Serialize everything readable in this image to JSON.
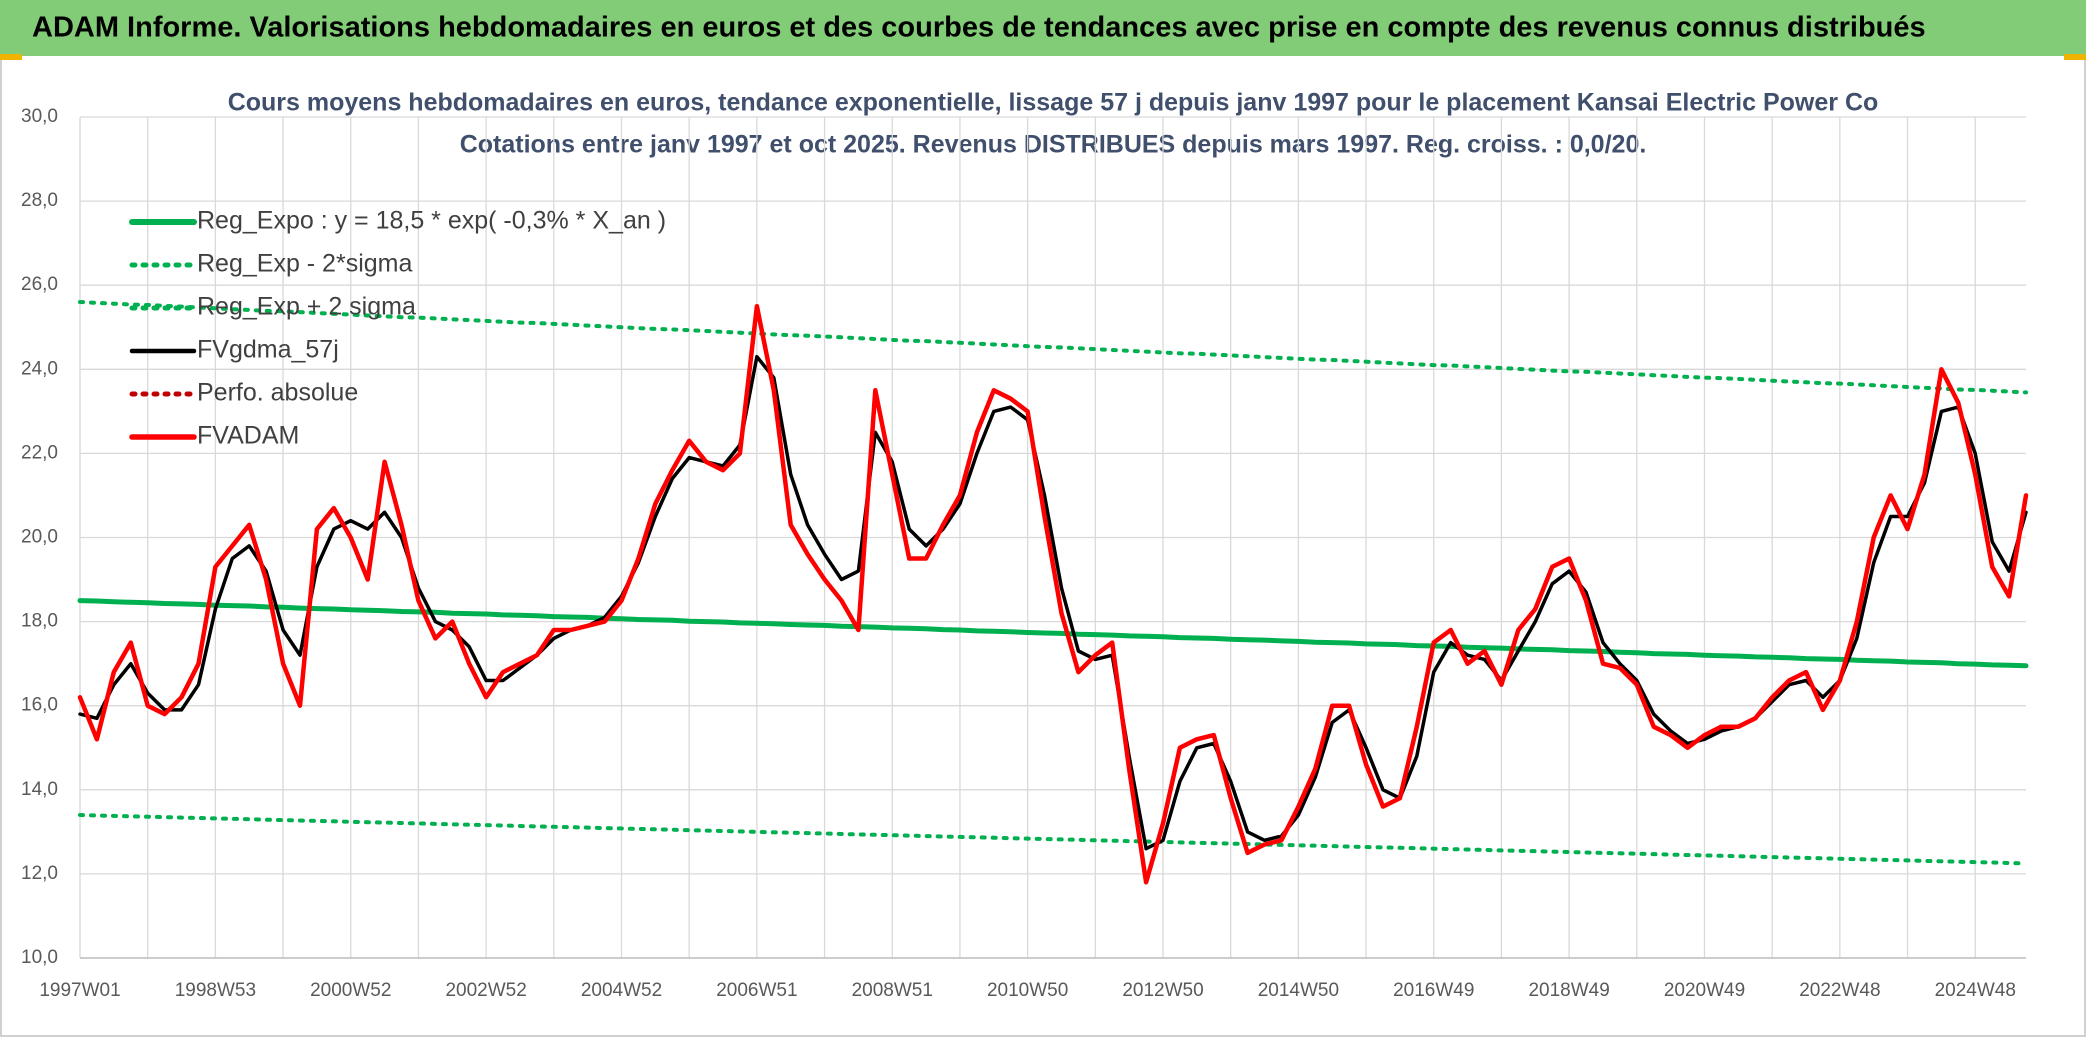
{
  "header": {
    "title": "ADAM Informe. Valorisations hebdomadaires en euros et des courbes de tendances avec prise en compte des revenus connus distribués"
  },
  "chart_data": {
    "type": "line",
    "title": "Cours moyens hebdomadaires en euros, tendance exponentielle, lissage 57 j depuis janv 1997 pour le placement Kansai Electric Power Co",
    "subtitle": "Cotations entre janv 1997 et oct 2025. Revenus DISTRIBUES depuis mars 1997. Reg. croiss. : 0,0/20.",
    "categories": [
      "1997W01",
      null,
      null,
      null,
      null,
      null,
      null,
      null,
      "1998W53",
      null,
      null,
      null,
      null,
      null,
      null,
      null,
      "2000W52",
      null,
      null,
      null,
      null,
      null,
      null,
      null,
      "2002W52",
      null,
      null,
      null,
      null,
      null,
      null,
      null,
      "2004W52",
      null,
      null,
      null,
      null,
      null,
      null,
      null,
      "2006W51",
      null,
      null,
      null,
      null,
      null,
      null,
      null,
      "2008W51",
      null,
      null,
      null,
      null,
      null,
      null,
      null,
      "2010W50",
      null,
      null,
      null,
      null,
      null,
      null,
      null,
      "2012W50",
      null,
      null,
      null,
      null,
      null,
      null,
      null,
      "2014W50",
      null,
      null,
      null,
      null,
      null,
      null,
      null,
      "2016W49",
      null,
      null,
      null,
      null,
      null,
      null,
      null,
      "2018W49",
      null,
      null,
      null,
      null,
      null,
      null,
      null,
      "2020W49",
      null,
      null,
      null,
      null,
      null,
      null,
      null,
      "2022W48",
      null,
      null,
      null,
      null,
      null,
      null,
      null,
      "2024W48",
      null,
      null,
      null
    ],
    "ylim": [
      10,
      30
    ],
    "yticks": [
      {
        "value": 10,
        "label": "10,0"
      },
      {
        "value": 12,
        "label": "12,0"
      },
      {
        "value": 14,
        "label": "14,0"
      },
      {
        "value": 16,
        "label": "16,0"
      },
      {
        "value": 18,
        "label": "18,0"
      },
      {
        "value": 20,
        "label": "20,0"
      },
      {
        "value": 22,
        "label": "22,0"
      },
      {
        "value": 24,
        "label": "24,0"
      },
      {
        "value": 26,
        "label": "26,0"
      },
      {
        "value": 28,
        "label": "28,0"
      },
      {
        "value": 30,
        "label": "30,0"
      }
    ],
    "grid": true,
    "legend": "upper left",
    "series": [
      {
        "name": "Reg_Expo : y = 18,5 * exp( -0,3% *  X_an )",
        "color": "#00b050",
        "style": "solid",
        "width": 5,
        "values": [
          18.5,
          18.49,
          18.47,
          18.46,
          18.45,
          18.43,
          18.42,
          18.41,
          18.39,
          18.38,
          18.37,
          18.35,
          18.34,
          18.32,
          18.31,
          18.3,
          18.28,
          18.27,
          18.26,
          18.24,
          18.23,
          18.22,
          18.2,
          18.19,
          18.18,
          18.16,
          18.15,
          18.14,
          18.12,
          18.11,
          18.1,
          18.08,
          18.07,
          18.05,
          18.04,
          18.03,
          18.01,
          18.0,
          17.99,
          17.97,
          17.96,
          17.95,
          17.93,
          17.92,
          17.91,
          17.89,
          17.88,
          17.87,
          17.85,
          17.84,
          17.83,
          17.81,
          17.8,
          17.78,
          17.77,
          17.76,
          17.74,
          17.73,
          17.72,
          17.7,
          17.69,
          17.68,
          17.66,
          17.65,
          17.64,
          17.62,
          17.61,
          17.6,
          17.58,
          17.57,
          17.56,
          17.54,
          17.53,
          17.51,
          17.5,
          17.49,
          17.47,
          17.46,
          17.45,
          17.43,
          17.42,
          17.41,
          17.39,
          17.38,
          17.37,
          17.35,
          17.34,
          17.33,
          17.31,
          17.3,
          17.29,
          17.27,
          17.26,
          17.24,
          17.23,
          17.22,
          17.2,
          17.19,
          17.18,
          17.16,
          17.15,
          17.14,
          17.12,
          17.11,
          17.1,
          17.08,
          17.07,
          17.06,
          17.04,
          17.03,
          17.02,
          17.0,
          16.99,
          16.97,
          16.96,
          16.95
        ]
      },
      {
        "name": "Reg_Exp - 2*sigma",
        "color": "#00b050",
        "style": "dotted",
        "width": 4,
        "values": [
          13.4,
          13.39,
          13.38,
          13.37,
          13.36,
          13.35,
          13.34,
          13.33,
          13.32,
          13.31,
          13.3,
          13.29,
          13.28,
          13.27,
          13.26,
          13.25,
          13.24,
          13.23,
          13.22,
          13.21,
          13.2,
          13.19,
          13.18,
          13.17,
          13.16,
          13.15,
          13.14,
          13.13,
          13.12,
          13.11,
          13.1,
          13.09,
          13.08,
          13.07,
          13.06,
          13.05,
          13.04,
          13.03,
          13.02,
          13.01,
          13.0,
          12.99,
          12.98,
          12.97,
          12.96,
          12.95,
          12.94,
          12.93,
          12.92,
          12.91,
          12.9,
          12.89,
          12.88,
          12.87,
          12.86,
          12.85,
          12.84,
          12.83,
          12.82,
          12.81,
          12.8,
          12.79,
          12.78,
          12.77,
          12.76,
          12.75,
          12.74,
          12.73,
          12.72,
          12.71,
          12.7,
          12.69,
          12.68,
          12.67,
          12.66,
          12.65,
          12.64,
          12.63,
          12.62,
          12.61,
          12.6,
          12.59,
          12.58,
          12.57,
          12.56,
          12.55,
          12.54,
          12.53,
          12.52,
          12.51,
          12.5,
          12.49,
          12.48,
          12.47,
          12.46,
          12.45,
          12.44,
          12.43,
          12.42,
          12.41,
          12.4,
          12.39,
          12.38,
          12.37,
          12.36,
          12.35,
          12.34,
          12.33,
          12.32,
          12.31,
          12.3,
          12.29,
          12.28,
          12.27,
          12.26,
          12.25
        ]
      },
      {
        "name": "Reg_Exp + 2 sigma",
        "color": "#00b050",
        "style": "dotted",
        "width": 4,
        "values": [
          25.6,
          25.58,
          25.56,
          25.54,
          25.53,
          25.51,
          25.49,
          25.47,
          25.45,
          25.43,
          25.41,
          25.39,
          25.38,
          25.36,
          25.34,
          25.32,
          25.3,
          25.28,
          25.26,
          25.24,
          25.23,
          25.21,
          25.19,
          25.17,
          25.15,
          25.13,
          25.11,
          25.1,
          25.08,
          25.06,
          25.04,
          25.02,
          25.0,
          24.98,
          24.96,
          24.95,
          24.93,
          24.91,
          24.89,
          24.87,
          24.85,
          24.83,
          24.81,
          24.8,
          24.78,
          24.76,
          24.74,
          24.72,
          24.7,
          24.68,
          24.67,
          24.65,
          24.63,
          24.61,
          24.59,
          24.57,
          24.55,
          24.53,
          24.52,
          24.5,
          24.48,
          24.46,
          24.44,
          24.42,
          24.4,
          24.38,
          24.37,
          24.35,
          24.33,
          24.31,
          24.29,
          24.27,
          24.25,
          24.23,
          24.22,
          24.2,
          24.18,
          24.16,
          24.14,
          24.12,
          24.1,
          24.09,
          24.07,
          24.05,
          24.03,
          24.01,
          23.99,
          23.97,
          23.95,
          23.94,
          23.92,
          23.9,
          23.88,
          23.86,
          23.84,
          23.82,
          23.8,
          23.79,
          23.77,
          23.75,
          23.73,
          23.71,
          23.69,
          23.67,
          23.66,
          23.64,
          23.62,
          23.6,
          23.58,
          23.56,
          23.54,
          23.52,
          23.51,
          23.49,
          23.47,
          23.45
        ]
      },
      {
        "name": "FVgdma_57j",
        "color": "#000000",
        "style": "solid",
        "width": 3.5,
        "values": [
          15.8,
          15.7,
          16.5,
          17.0,
          16.3,
          15.9,
          15.9,
          16.5,
          18.3,
          19.5,
          19.8,
          19.2,
          17.8,
          17.2,
          19.3,
          20.2,
          20.4,
          20.2,
          20.6,
          20.0,
          18.8,
          18.0,
          17.8,
          17.4,
          16.6,
          16.6,
          16.9,
          17.2,
          17.6,
          17.8,
          17.9,
          18.1,
          18.6,
          19.4,
          20.5,
          21.4,
          21.9,
          21.8,
          21.7,
          22.2,
          24.3,
          23.8,
          21.5,
          20.3,
          19.6,
          19.0,
          19.2,
          22.5,
          21.8,
          20.2,
          19.8,
          20.2,
          20.8,
          22.0,
          23.0,
          23.1,
          22.8,
          21.0,
          18.8,
          17.3,
          17.1,
          17.2,
          14.8,
          12.6,
          12.8,
          14.2,
          15.0,
          15.1,
          14.2,
          13.0,
          12.8,
          12.9,
          13.4,
          14.3,
          15.6,
          15.9,
          15.0,
          14.0,
          13.8,
          14.8,
          16.8,
          17.5,
          17.2,
          17.1,
          16.6,
          17.3,
          18.0,
          18.9,
          19.2,
          18.7,
          17.5,
          17.0,
          16.6,
          15.8,
          15.4,
          15.1,
          15.2,
          15.4,
          15.5,
          15.7,
          16.1,
          16.5,
          16.6,
          16.2,
          16.6,
          17.6,
          19.4,
          20.5,
          20.5,
          21.3,
          23.0,
          23.1,
          22.0,
          19.9,
          19.2,
          20.6
        ]
      },
      {
        "name": "Perfo. absolue",
        "color": "#c00000",
        "style": "dotted",
        "width": 4,
        "values": [
          null,
          null,
          null,
          null,
          null,
          null,
          null,
          null,
          null,
          null,
          null,
          null,
          null,
          null,
          null,
          null,
          null,
          null,
          null,
          null,
          null,
          null,
          null,
          null,
          null,
          null,
          null,
          null,
          null,
          null,
          null,
          null,
          null,
          null,
          null,
          null,
          null,
          null,
          null,
          null,
          null,
          null,
          null,
          null,
          null,
          null,
          null,
          null,
          null,
          null,
          null,
          null,
          null,
          null,
          null,
          null,
          null,
          null,
          null,
          null,
          null,
          null,
          null,
          null,
          null,
          null,
          null,
          null,
          null,
          null,
          null,
          null,
          null,
          null,
          null,
          null,
          null,
          null,
          null,
          null,
          null,
          null,
          null,
          null,
          null,
          null,
          null,
          null,
          null,
          null,
          null,
          null,
          null,
          null,
          null,
          null,
          null,
          null,
          null,
          null,
          null,
          null,
          null,
          null,
          null,
          null,
          null,
          null,
          null,
          null,
          null,
          null,
          null,
          null,
          null,
          null
        ]
      },
      {
        "name": "FVADAM",
        "color": "#ff0000",
        "style": "solid",
        "width": 4.5,
        "values": [
          16.2,
          15.2,
          16.8,
          17.5,
          16.0,
          15.8,
          16.2,
          17.0,
          19.3,
          19.8,
          20.3,
          19.0,
          17.0,
          16.0,
          20.2,
          20.7,
          20.0,
          19.0,
          21.8,
          20.3,
          18.5,
          17.6,
          18.0,
          17.0,
          16.2,
          16.8,
          17.0,
          17.2,
          17.8,
          17.8,
          17.9,
          18.0,
          18.5,
          19.5,
          20.8,
          21.6,
          22.3,
          21.8,
          21.6,
          22.0,
          25.5,
          23.5,
          20.3,
          19.6,
          19.0,
          18.5,
          17.8,
          23.5,
          21.5,
          19.5,
          19.5,
          20.3,
          21.0,
          22.5,
          23.5,
          23.3,
          23.0,
          20.5,
          18.2,
          16.8,
          17.2,
          17.5,
          14.5,
          11.8,
          13.2,
          15.0,
          15.2,
          15.3,
          13.8,
          12.5,
          12.7,
          12.8,
          13.6,
          14.5,
          16.0,
          16.0,
          14.6,
          13.6,
          13.8,
          15.5,
          17.5,
          17.8,
          17.0,
          17.3,
          16.5,
          17.8,
          18.3,
          19.3,
          19.5,
          18.5,
          17.0,
          16.9,
          16.5,
          15.5,
          15.3,
          15.0,
          15.3,
          15.5,
          15.5,
          15.7,
          16.2,
          16.6,
          16.8,
          15.9,
          16.6,
          18.0,
          20.0,
          21.0,
          20.2,
          21.5,
          24.0,
          23.2,
          21.5,
          19.3,
          18.6,
          21.0
        ]
      }
    ]
  }
}
